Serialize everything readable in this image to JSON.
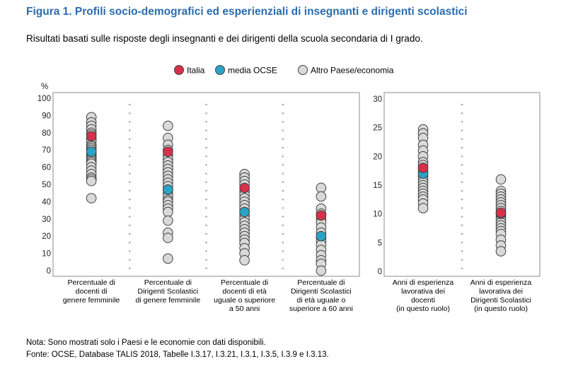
{
  "header": {
    "title": "Figura 1. Profili socio-demografici ed esperienziali di insegnanti e dirigenti scolastici",
    "subtitle": "Risultati basati sulle risposte degli insegnanti e dei dirigenti della scuola secondaria di I grado."
  },
  "colors": {
    "title": "#2b6cb0",
    "italia": "#d8304a",
    "ocse": "#2ba3c6",
    "altro": "#d9d9d9",
    "marker_edge": "#404040",
    "separator": "#a6a6a6"
  },
  "legend": [
    {
      "key": "italia",
      "label": "Italia"
    },
    {
      "key": "ocse",
      "label": "media OCSE"
    },
    {
      "key": "altro",
      "label": "Altro Paese/economia"
    }
  ],
  "chart_data": [
    {
      "type": "scatter",
      "y_unit_label": "%",
      "ylim": [
        0,
        100
      ],
      "yticks": [
        0,
        10,
        20,
        30,
        40,
        50,
        60,
        70,
        80,
        90,
        100
      ],
      "categories": [
        [
          "Percentuale di",
          "docenti di",
          "genere femminile"
        ],
        [
          "Percentuale di",
          "Dirigenti Scolastici",
          "di genere femminile"
        ],
        [
          "Percentuale di",
          "docenti di età",
          "uguale o superiore",
          "a 50 anni"
        ],
        [
          "Percentuale di",
          "Dirigenti Scolastici",
          "di età uguale o",
          "superiore a 60 anni"
        ]
      ],
      "series": [
        {
          "name": "Altro Paese/economia",
          "key": "altro",
          "values": [
            [
              89,
              86,
              84,
              82,
              80,
              79,
              77,
              76,
              75,
              73,
              72,
              71,
              70,
              69,
              68,
              67,
              66,
              65,
              64,
              63,
              62,
              60,
              58,
              56,
              54,
              53,
              52,
              42
            ],
            [
              84,
              77,
              73,
              70,
              67,
              65,
              63,
              61,
              59,
              57,
              55,
              53,
              51,
              49,
              47,
              45,
              43,
              41,
              40,
              38,
              36,
              34,
              29,
              22,
              19,
              7
            ],
            [
              56,
              54,
              52,
              50,
              46,
              44,
              42,
              40,
              38,
              36,
              34,
              32,
              30,
              28,
              26,
              24,
              22,
              20,
              18,
              16,
              13,
              10,
              6
            ],
            [
              48,
              43,
              36,
              33,
              30,
              28,
              25,
              22,
              19,
              17,
              15,
              12,
              9,
              6,
              4,
              0
            ]
          ]
        },
        {
          "name": "media OCSE",
          "key": "ocse",
          "values": [
            69,
            47,
            34,
            20
          ]
        },
        {
          "name": "Italia",
          "key": "italia",
          "values": [
            78,
            69,
            48,
            32
          ]
        }
      ]
    },
    {
      "type": "scatter",
      "ylim": [
        0,
        30
      ],
      "yticks": [
        0,
        5,
        10,
        15,
        20,
        25,
        30
      ],
      "categories": [
        [
          "Anni di esperienza",
          "lavorativa dei",
          "docenti",
          "(in questo ruolo)"
        ],
        [
          "Anni di esperienza",
          "lavorativa dei",
          "Dirigenti Scolastici",
          "(in questo ruolo)"
        ]
      ],
      "series": [
        {
          "name": "Altro Paese/economia",
          "key": "altro",
          "values": [
            [
              24.7,
              24.0,
              23.2,
              22.0,
              21.0,
              20.0,
              19.0,
              18.5,
              18.0,
              17.5,
              17.0,
              16.5,
              16.0,
              15.5,
              15.0,
              14.5,
              14.0,
              13.5,
              13.0,
              12.5,
              11.8,
              11.0
            ],
            [
              16.0,
              14.0,
              13.5,
              13.0,
              12.5,
              12.0,
              11.5,
              11.0,
              10.5,
              10.0,
              9.5,
              9.0,
              8.5,
              8.0,
              7.5,
              7.0,
              6.5,
              5.5,
              4.5,
              3.5
            ]
          ]
        },
        {
          "name": "media OCSE",
          "key": "ocse",
          "values": [
            17.0,
            10.0
          ]
        },
        {
          "name": "Italia",
          "key": "italia",
          "values": [
            18.0,
            10.2
          ]
        }
      ]
    }
  ],
  "notes": {
    "nota": "Nota: Sono mostrati solo i Paesi e le economie con dati disponibili.",
    "fonte": "Fonte: OCSE, Database TALIS 2018, Tabelle I.3.17, I.3.21, I.3.1, I.3.5, I.3.9 e I.3.13."
  }
}
